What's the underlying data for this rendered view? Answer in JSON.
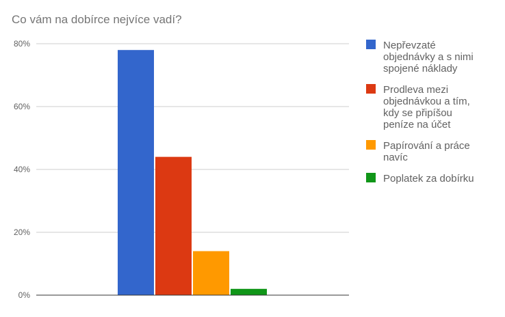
{
  "chart_data": {
    "type": "bar",
    "title": "Co vám na dobírce nejvíce vadí?",
    "xlabel": "",
    "ylabel": "",
    "ylim": [
      0,
      80
    ],
    "y_ticks": [
      "0%",
      "20%",
      "40%",
      "60%",
      "80%"
    ],
    "y_tick_values": [
      0,
      20,
      40,
      60,
      80
    ],
    "grid": true,
    "legend_position": "right",
    "series": [
      {
        "name": "Nepřevzaté objednávky a s nimi spojené náklady",
        "legend_lines": [
          "Nepřevzaté",
          "objednávky a s nimi",
          "spojené náklady"
        ],
        "value": 78,
        "color": "#3366cc"
      },
      {
        "name": "Prodleva mezi objednávkou a tím, kdy se připíšou peníze na účet",
        "legend_lines": [
          "Prodleva mezi",
          "objednávkou a tím,",
          "kdy se připíšou",
          "peníze na účet"
        ],
        "value": 44,
        "color": "#dc3912"
      },
      {
        "name": "Papírování a práce navíc",
        "legend_lines": [
          "Papírování a práce",
          "navíc"
        ],
        "value": 14,
        "color": "#ff9900"
      },
      {
        "name": "Poplatek za dobírku",
        "legend_lines": [
          "Poplatek za dobírku"
        ],
        "value": 2,
        "color": "#109618"
      }
    ]
  }
}
